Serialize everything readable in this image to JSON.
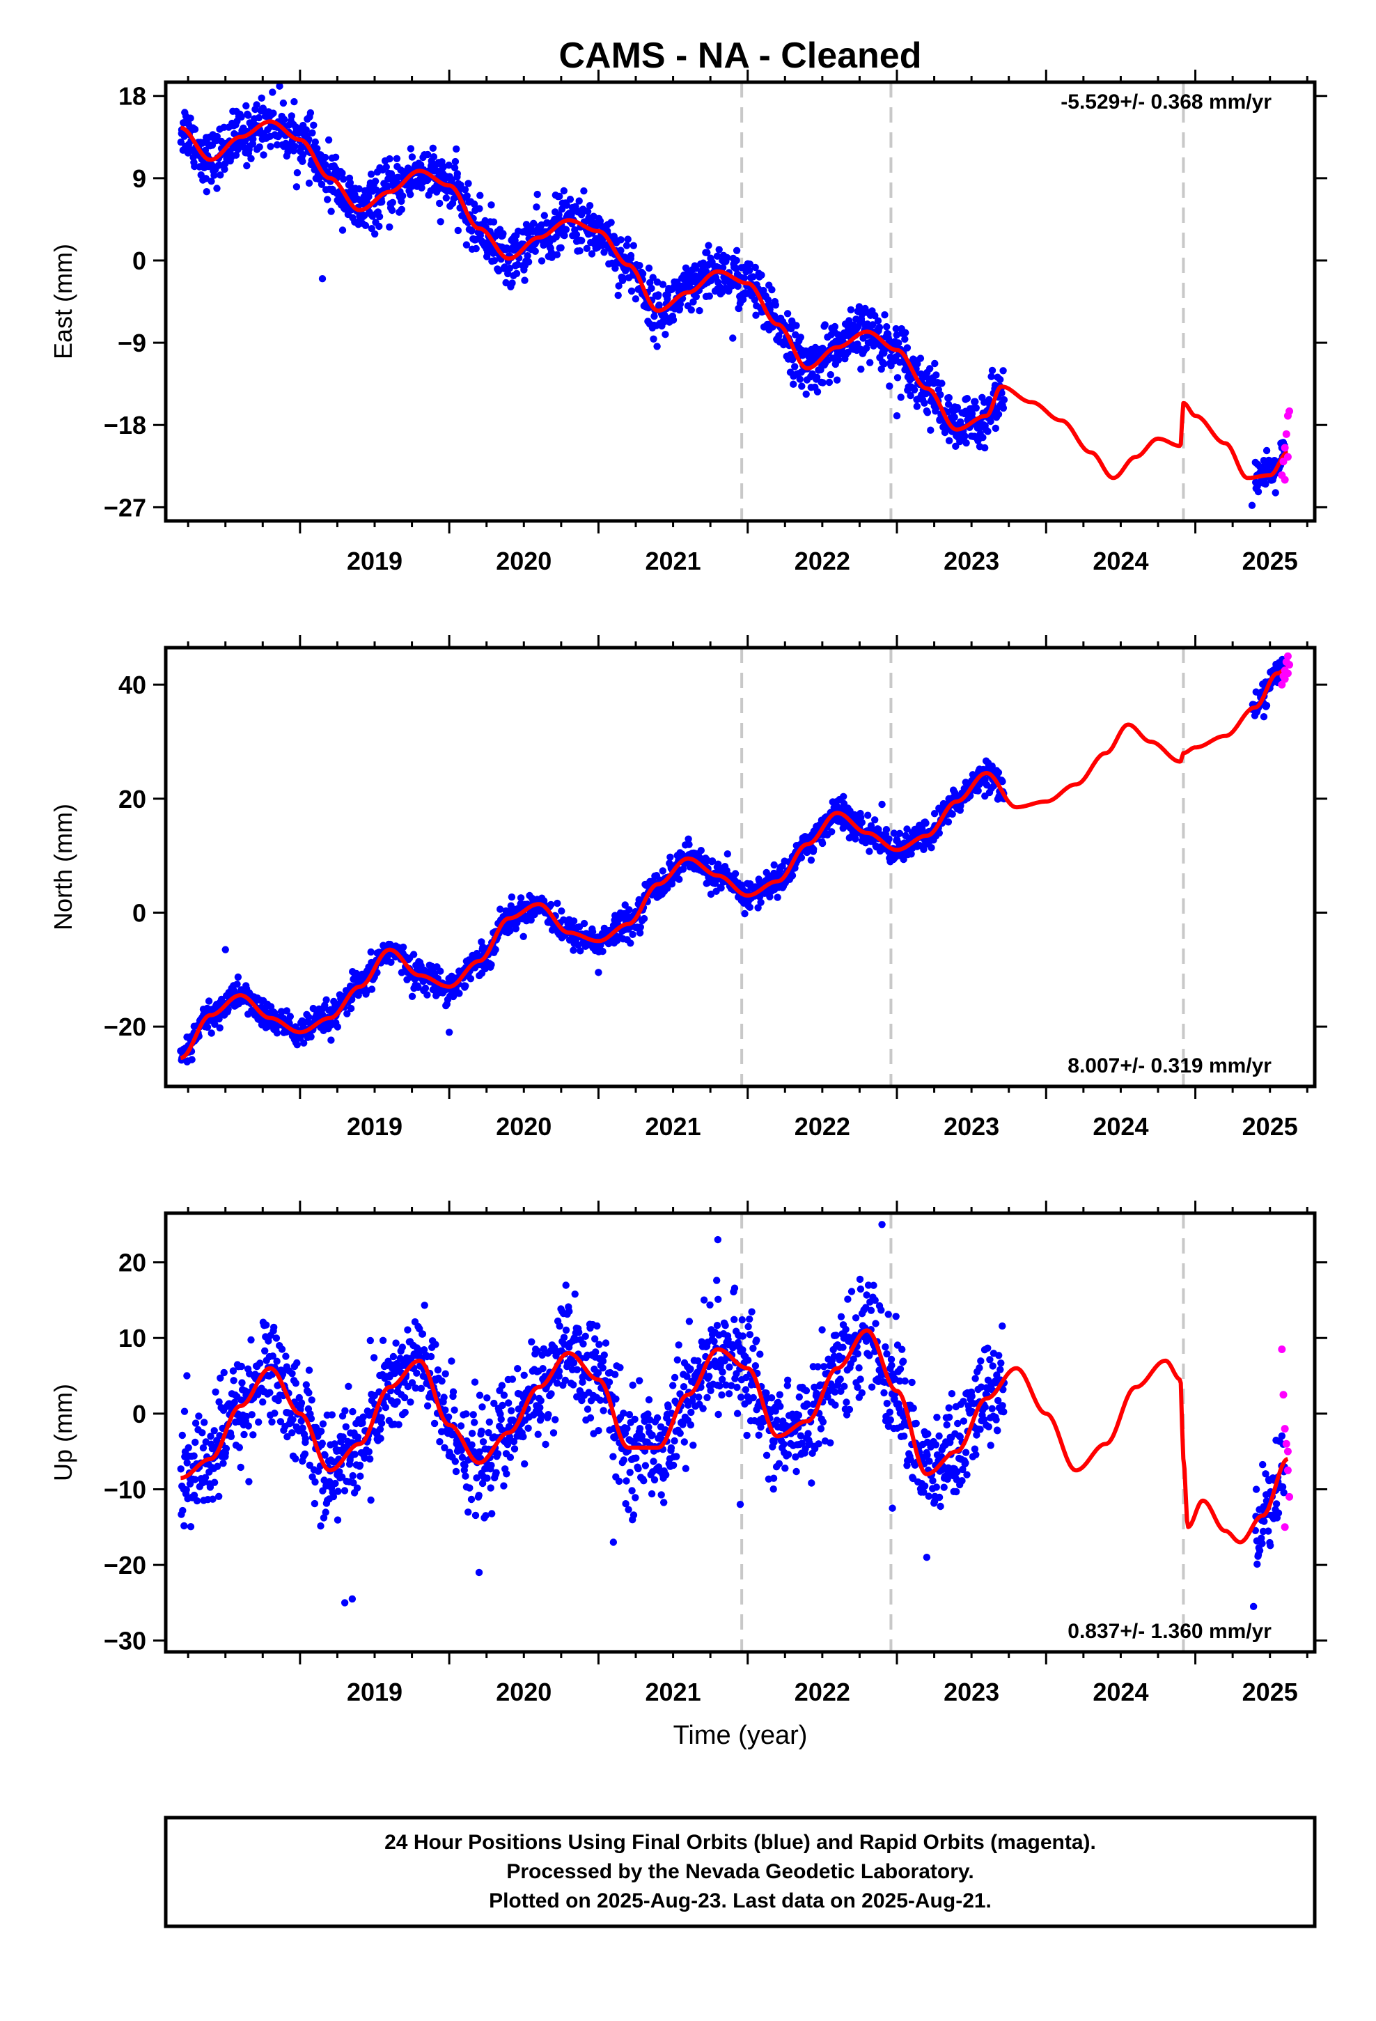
{
  "title": "CAMS  - NA - Cleaned",
  "xlabel": "Time (year)",
  "footer": {
    "line1": "24 Hour Positions Using Final Orbits (blue) and Rapid Orbits (magenta).",
    "line2": "Processed by the Nevada Geodetic Laboratory.",
    "line3": "Plotted on 2025-Aug-23. Last data on 2025-Aug-21."
  },
  "colors": {
    "final": "#0000ff",
    "rapid": "#ff00ff",
    "model": "#ff0000",
    "events": "#c8c8c8"
  },
  "chart_data": [
    {
      "type": "scatter",
      "ylabel": "East (mm)",
      "rate": "-5.529+/- 0.368 mm/yr",
      "xlim": [
        2018.1,
        2025.8
      ],
      "ylim": [
        -28.5,
        19.5
      ],
      "yticks": [
        18,
        9,
        0,
        -9,
        -18,
        -27
      ],
      "ytick_labels": [
        "18",
        "9",
        "0",
        "−9",
        "−18",
        "−27"
      ],
      "xticks": [
        2019,
        2020,
        2021,
        2022,
        2023,
        2024,
        2025
      ],
      "xtick_labels": [
        "2019",
        "2020",
        "2021",
        "2022",
        "2023",
        "2024",
        "2025"
      ],
      "event_lines": [
        2021.96,
        2022.96,
        2024.92
      ],
      "model": {
        "x": [
          2018.2,
          2018.4,
          2018.6,
          2018.8,
          2019.0,
          2019.2,
          2019.4,
          2019.6,
          2019.8,
          2020.0,
          2020.2,
          2020.4,
          2020.6,
          2020.8,
          2021.0,
          2021.2,
          2021.4,
          2021.6,
          2021.8,
          2022.0,
          2022.2,
          2022.4,
          2022.6,
          2022.8,
          2023.0,
          2023.2,
          2023.4,
          2023.6,
          2023.7,
          2023.9,
          2024.1,
          2024.3,
          2024.45,
          2024.6,
          2024.75,
          2024.9,
          2024.92,
          2025.0,
          2025.2,
          2025.35,
          2025.5,
          2025.62
        ],
        "y": [
          14.5,
          11.0,
          13.5,
          15.2,
          13.2,
          9.0,
          5.5,
          7.5,
          9.8,
          8.2,
          3.5,
          0.2,
          2.5,
          4.4,
          3.2,
          -0.5,
          -5.5,
          -3.5,
          -1.2,
          -2.5,
          -7.0,
          -11.8,
          -9.5,
          -7.8,
          -9.8,
          -14.0,
          -18.5,
          -17.0,
          -13.8,
          -15.5,
          -17.5,
          -21.0,
          -23.8,
          -21.5,
          -19.5,
          -20.3,
          -15.6,
          -17.0,
          -20.0,
          -23.8,
          -23.5,
          -21.0
        ]
      },
      "final": [
        {
          "x_range": [
            2018.2,
            2023.72
          ],
          "center": "model",
          "noise": 1.5
        },
        {
          "x_range": [
            2025.4,
            2025.6
          ],
          "center": "model",
          "noise": 1.0
        }
      ],
      "final_outliers": {
        "x": [
          2019.15,
          2021.9,
          2022.35,
          2023.0,
          2025.38
        ],
        "y": [
          -2.0,
          -8.5,
          -13.0,
          -17.0,
          -26.8
        ]
      },
      "rapid": {
        "x": [
          2025.58,
          2025.59,
          2025.6,
          2025.61,
          2025.62,
          2025.63,
          2025.6,
          2025.62
        ],
        "y": [
          -23.5,
          -22.0,
          -20.5,
          -19.0,
          -17.0,
          -16.5,
          -24.0,
          -21.5
        ]
      }
    },
    {
      "type": "scatter",
      "ylabel": "North (mm)",
      "rate": "8.007+/- 0.319 mm/yr",
      "xlim": [
        2018.1,
        2025.8
      ],
      "ylim": [
        -30.5,
        46.5
      ],
      "yticks": [
        40,
        20,
        0,
        -20
      ],
      "ytick_labels": [
        "40",
        "20",
        "0",
        "−20"
      ],
      "xticks": [
        2019,
        2020,
        2021,
        2022,
        2023,
        2024,
        2025
      ],
      "xtick_labels": [
        "2019",
        "2020",
        "2021",
        "2022",
        "2023",
        "2024",
        "2025"
      ],
      "event_lines": [
        2021.96,
        2022.96,
        2024.92
      ],
      "model": {
        "x": [
          2018.2,
          2018.4,
          2018.6,
          2018.8,
          2019.0,
          2019.2,
          2019.4,
          2019.6,
          2019.8,
          2020.0,
          2020.2,
          2020.4,
          2020.6,
          2020.8,
          2021.0,
          2021.2,
          2021.4,
          2021.6,
          2021.8,
          2022.0,
          2022.2,
          2022.4,
          2022.6,
          2022.8,
          2023.0,
          2023.2,
          2023.4,
          2023.6,
          2023.8,
          2024.0,
          2024.2,
          2024.4,
          2024.55,
          2024.7,
          2024.9,
          2024.92,
          2025.0,
          2025.2,
          2025.4,
          2025.55,
          2025.62
        ],
        "y": [
          -25.5,
          -18.0,
          -14.5,
          -18.5,
          -21.0,
          -18.5,
          -13.0,
          -6.5,
          -11.0,
          -13.0,
          -8.5,
          -1.0,
          1.5,
          -3.5,
          -5.0,
          -2.0,
          5.0,
          9.5,
          6.5,
          3.0,
          5.5,
          12.0,
          17.5,
          14.0,
          11.0,
          13.5,
          19.5,
          24.5,
          18.5,
          19.5,
          22.5,
          28.0,
          33.0,
          30.0,
          26.5,
          28.0,
          29.0,
          31.0,
          36.0,
          42.0,
          43.0
        ]
      },
      "final": [
        {
          "x_range": [
            2018.2,
            2023.72
          ],
          "center": "model",
          "noise": 1.3
        },
        {
          "x_range": [
            2025.38,
            2025.6
          ],
          "center": "model",
          "noise": 1.2
        }
      ],
      "final_outliers": {
        "x": [
          2018.5,
          2020.0,
          2021.0,
          2022.9
        ],
        "y": [
          -6.5,
          -21.0,
          -10.5,
          19.0
        ]
      },
      "rapid": {
        "x": [
          2025.58,
          2025.59,
          2025.6,
          2025.61,
          2025.62,
          2025.63,
          2025.6,
          2025.62
        ],
        "y": [
          40.0,
          41.5,
          42.5,
          44.0,
          45.0,
          43.5,
          41.0,
          42.0
        ]
      }
    },
    {
      "type": "scatter",
      "ylabel": "Up (mm)",
      "rate": "0.837+/- 1.360 mm/yr",
      "xlim": [
        2018.1,
        2025.8
      ],
      "ylim": [
        -31.5,
        26.5
      ],
      "yticks": [
        20,
        10,
        0,
        -10,
        -20,
        -30
      ],
      "ytick_labels": [
        "20",
        "10",
        "0",
        "−10",
        "−20",
        "−30"
      ],
      "xticks": [
        2019,
        2020,
        2021,
        2022,
        2023,
        2024,
        2025
      ],
      "xtick_labels": [
        "2019",
        "2020",
        "2021",
        "2022",
        "2023",
        "2024",
        "2025"
      ],
      "event_lines": [
        2021.96,
        2022.96,
        2024.92
      ],
      "model": {
        "x": [
          2018.2,
          2018.4,
          2018.6,
          2018.8,
          2019.0,
          2019.2,
          2019.4,
          2019.6,
          2019.8,
          2020.0,
          2020.2,
          2020.4,
          2020.6,
          2020.8,
          2021.0,
          2021.2,
          2021.4,
          2021.6,
          2021.8,
          2022.0,
          2022.2,
          2022.4,
          2022.6,
          2022.8,
          2023.0,
          2023.2,
          2023.4,
          2023.6,
          2023.8,
          2024.0,
          2024.2,
          2024.4,
          2024.6,
          2024.8,
          2024.9,
          2024.92,
          2024.95,
          2025.05,
          2025.2,
          2025.3,
          2025.45,
          2025.62
        ],
        "y": [
          -8.5,
          -6.0,
          1.0,
          6.0,
          0.0,
          -7.5,
          -4.0,
          3.5,
          7.0,
          -1.5,
          -6.5,
          -2.5,
          3.5,
          8.0,
          4.5,
          -4.5,
          -4.5,
          2.5,
          8.5,
          6.0,
          -3.0,
          -1.0,
          6.0,
          11.0,
          3.0,
          -8.0,
          -5.0,
          2.0,
          6.0,
          0.0,
          -7.5,
          -4.0,
          3.5,
          7.0,
          4.5,
          -6.0,
          -15.0,
          -11.5,
          -15.5,
          -17.0,
          -13.5,
          -6.0
        ]
      },
      "final": [
        {
          "x_range": [
            2018.2,
            2023.72
          ],
          "center": "model",
          "noise": 3.5
        },
        {
          "x_range": [
            2025.4,
            2025.6
          ],
          "center": "model",
          "noise": 3.0
        }
      ],
      "final_outliers": {
        "x": [
          2019.1,
          2019.3,
          2019.35,
          2020.2,
          2021.1,
          2021.8,
          2021.95,
          2022.9,
          2022.97,
          2023.2,
          2025.39
        ],
        "y": [
          -2.5,
          -25.0,
          -24.5,
          -21.0,
          -17.0,
          23.0,
          -12.0,
          25.0,
          -12.5,
          -19.0,
          -25.5
        ]
      },
      "rapid": {
        "x": [
          2025.58,
          2025.59,
          2025.6,
          2025.61,
          2025.62,
          2025.63,
          2025.6,
          2025.62
        ],
        "y": [
          8.5,
          2.5,
          -2.0,
          -4.0,
          -7.5,
          -11.0,
          -15.0,
          -5.0
        ]
      }
    }
  ]
}
